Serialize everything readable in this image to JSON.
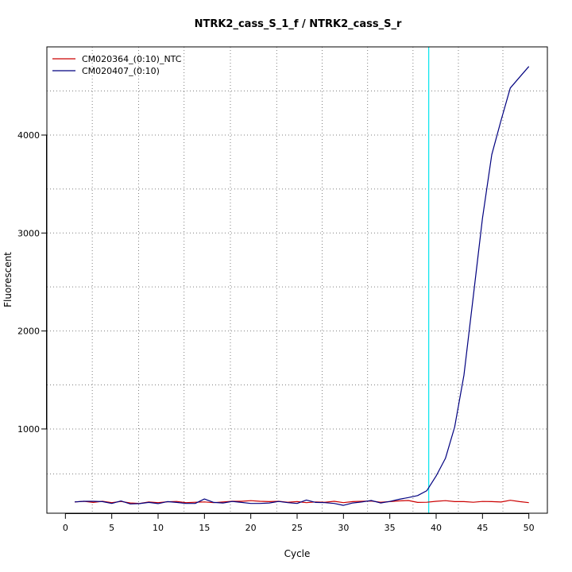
{
  "chart_data": {
    "type": "line",
    "title": "NTRK2_cass_S_1_f / NTRK2_cass_S_r",
    "xlabel": "Cycle",
    "ylabel": "Fluorescent",
    "xlim": [
      -2,
      52
    ],
    "ylim": [
      140,
      4900
    ],
    "x_ticks": [
      0,
      5,
      10,
      15,
      20,
      25,
      30,
      35,
      40,
      45,
      50
    ],
    "y_ticks": [
      1000,
      2000,
      3000,
      4000
    ],
    "grid": true,
    "grid_x": [
      2.9,
      7.9,
      12.8,
      17.8,
      22.8,
      27.7,
      32.6,
      37.5,
      42.4,
      47.2
    ],
    "grid_y": [
      540,
      1000,
      1450,
      1000,
      2000,
      2450,
      3000,
      3450,
      4000,
      4450
    ],
    "threshold_cycle": 39.2,
    "threshold_color": "#00e5ee",
    "legend_position": "top-left",
    "x": [
      1,
      2,
      3,
      4,
      5,
      6,
      7,
      8,
      9,
      10,
      11,
      12,
      13,
      14,
      15,
      16,
      17,
      18,
      19,
      20,
      21,
      22,
      23,
      24,
      25,
      26,
      27,
      28,
      29,
      30,
      31,
      32,
      33,
      34,
      35,
      36,
      37,
      38,
      39,
      40,
      41,
      42,
      43,
      44,
      45,
      46,
      47,
      48,
      49,
      50
    ],
    "series": [
      {
        "name": "CM020364_(0:10)_NTC",
        "color": "#cc0000",
        "values": [
          255,
          262,
          250,
          262,
          248,
          260,
          245,
          240,
          255,
          248,
          257,
          260,
          248,
          252,
          255,
          248,
          255,
          262,
          262,
          268,
          262,
          258,
          262,
          252,
          258,
          248,
          255,
          252,
          262,
          248,
          258,
          262,
          265,
          252,
          258,
          266,
          270,
          250,
          252,
          262,
          268,
          258,
          258,
          252,
          260,
          258,
          254,
          272,
          258,
          248
        ]
      },
      {
        "name": "CM020407_(0:10)",
        "color": "#00007f",
        "values": [
          255,
          262,
          262,
          258,
          240,
          265,
          235,
          238,
          250,
          238,
          258,
          250,
          240,
          240,
          285,
          250,
          245,
          260,
          250,
          240,
          240,
          245,
          260,
          248,
          240,
          275,
          250,
          248,
          240,
          220,
          245,
          255,
          270,
          245,
          260,
          282,
          300,
          320,
          370,
          520,
          700,
          1020,
          1550,
          2350,
          3150,
          3800,
          4150,
          4480,
          4590,
          4700
        ]
      }
    ]
  }
}
